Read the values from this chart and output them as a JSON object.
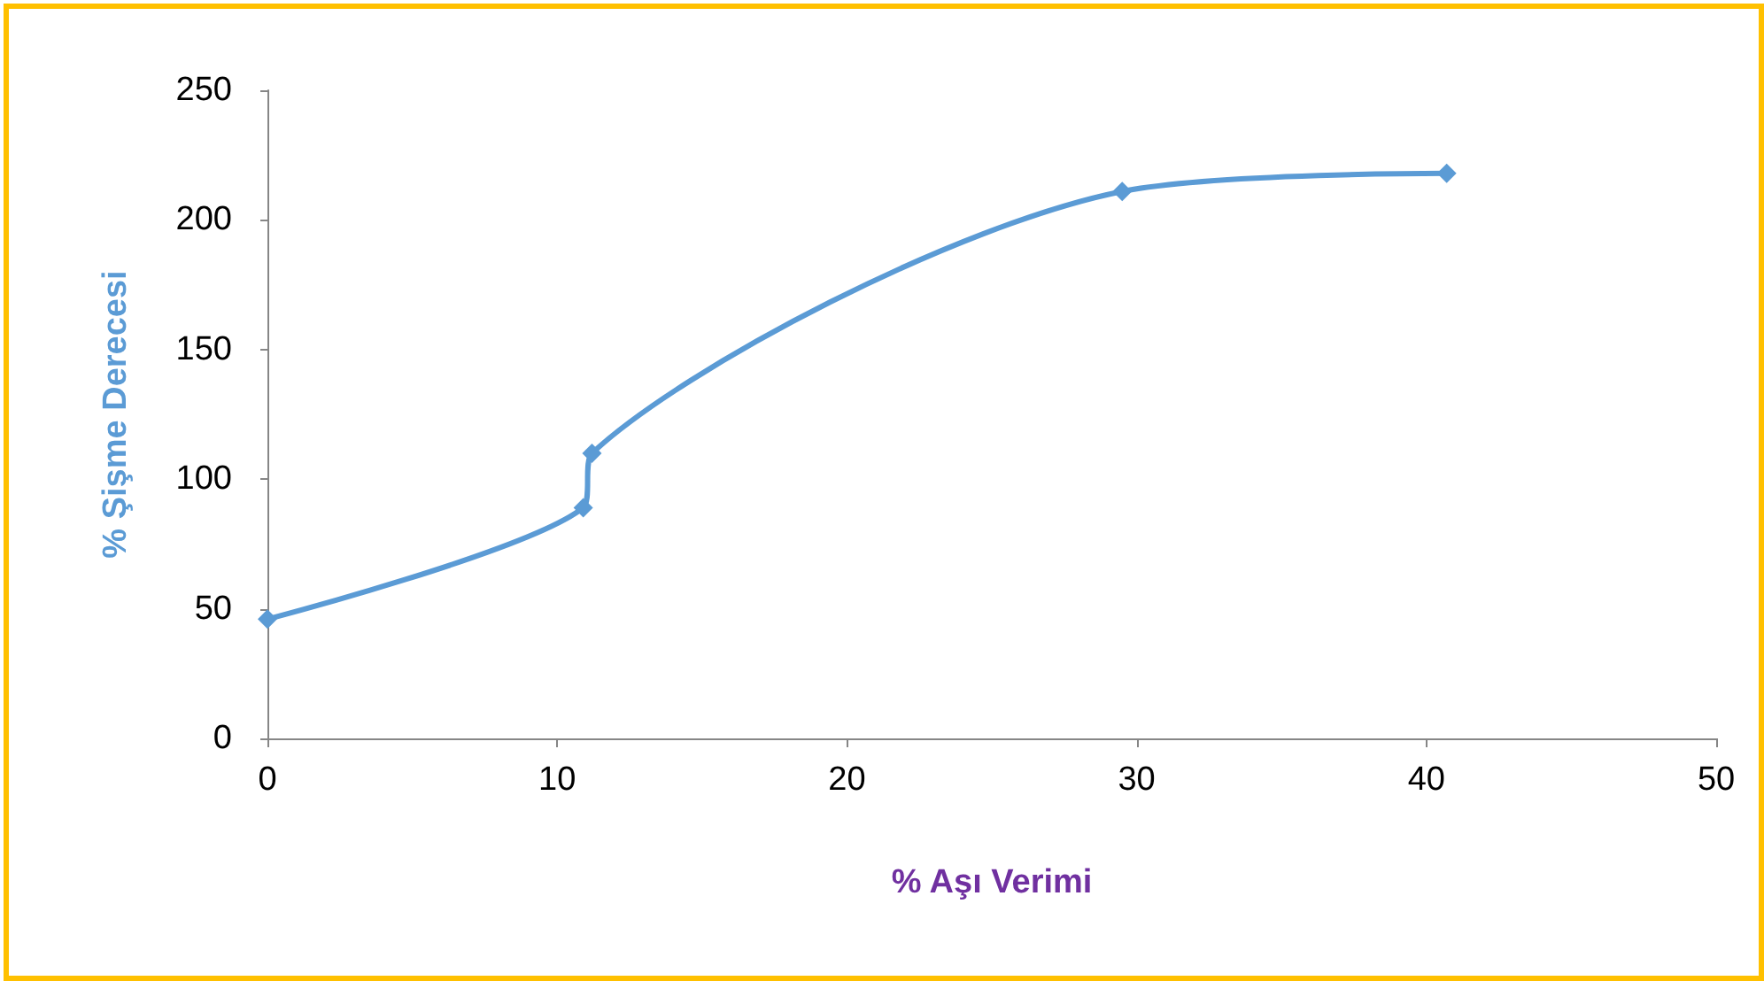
{
  "chart_data": {
    "type": "line",
    "xlabel": "% Aşı Verimi",
    "ylabel": "% Şişme Derecesi",
    "x": [
      0,
      10.9,
      11.2,
      29.5,
      40.7
    ],
    "series": [
      {
        "color": "#5b9bd5",
        "values": [
          46,
          89,
          110,
          211,
          218
        ]
      }
    ],
    "xlim": [
      0,
      50
    ],
    "xticks": [
      0,
      10,
      20,
      30,
      40,
      50
    ],
    "ylim": [
      0,
      250
    ],
    "yticks": [
      0,
      50,
      100,
      150,
      200,
      250
    ],
    "grid": false,
    "marker": "diamond",
    "line_style": "solid"
  }
}
